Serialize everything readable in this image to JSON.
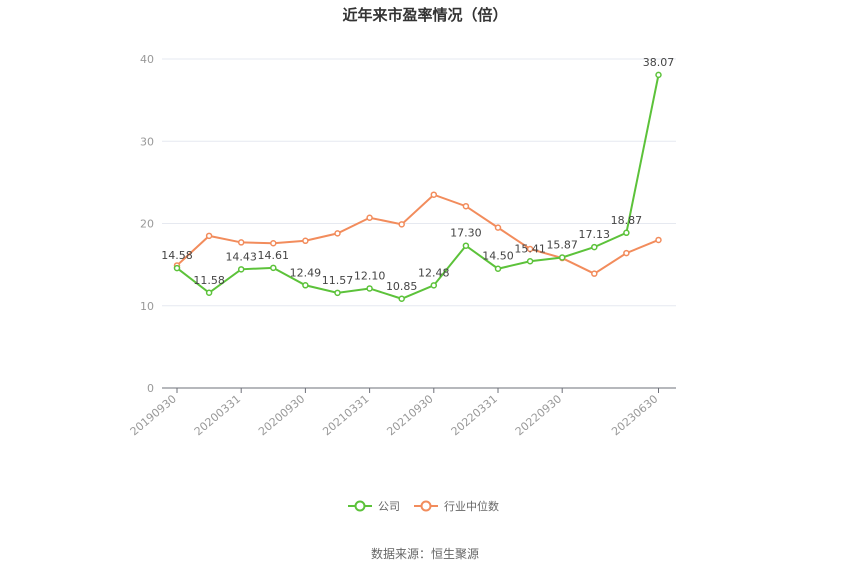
{
  "chart_data": {
    "type": "line",
    "title": "近年来市盈率情况（倍）",
    "source": "数据来源：恒生聚源",
    "ylim": [
      0,
      40
    ],
    "yticks": [
      "0",
      "10",
      "20",
      "30",
      "40"
    ],
    "x_tick_labels": [
      "20190930",
      "20200331",
      "20200930",
      "20210331",
      "20210930",
      "20220331",
      "20220930",
      "20230630"
    ],
    "x": [
      "20190930",
      "20191231",
      "20200331",
      "20200630",
      "20200930",
      "20201231",
      "20210331",
      "20210630",
      "20210930",
      "20211231",
      "20220331",
      "20220630",
      "20220930",
      "20221231",
      "20230331",
      "20230630"
    ],
    "grid": true,
    "legend_position": "bottom",
    "series": [
      {
        "name": "公司",
        "color": "#5cc23a",
        "values": [
          14.58,
          11.58,
          14.43,
          14.61,
          12.49,
          11.57,
          12.1,
          10.85,
          12.48,
          17.3,
          14.5,
          15.41,
          15.87,
          17.13,
          18.87,
          38.07
        ],
        "labels": [
          "14.58",
          "11.58",
          "14.43",
          "14.61",
          "12.49",
          "11.57",
          "12.10",
          "10.85",
          "12.48",
          "17.30",
          "14.50",
          "15.41",
          "15.87",
          "17.13",
          "18.87",
          "38.07"
        ]
      },
      {
        "name": "行业中位数",
        "color": "#f28c5c",
        "values": [
          14.9,
          18.5,
          17.7,
          17.6,
          17.9,
          18.8,
          20.7,
          19.9,
          23.5,
          22.1,
          19.5,
          16.9,
          15.8,
          13.9,
          16.4,
          18.0
        ]
      }
    ]
  }
}
